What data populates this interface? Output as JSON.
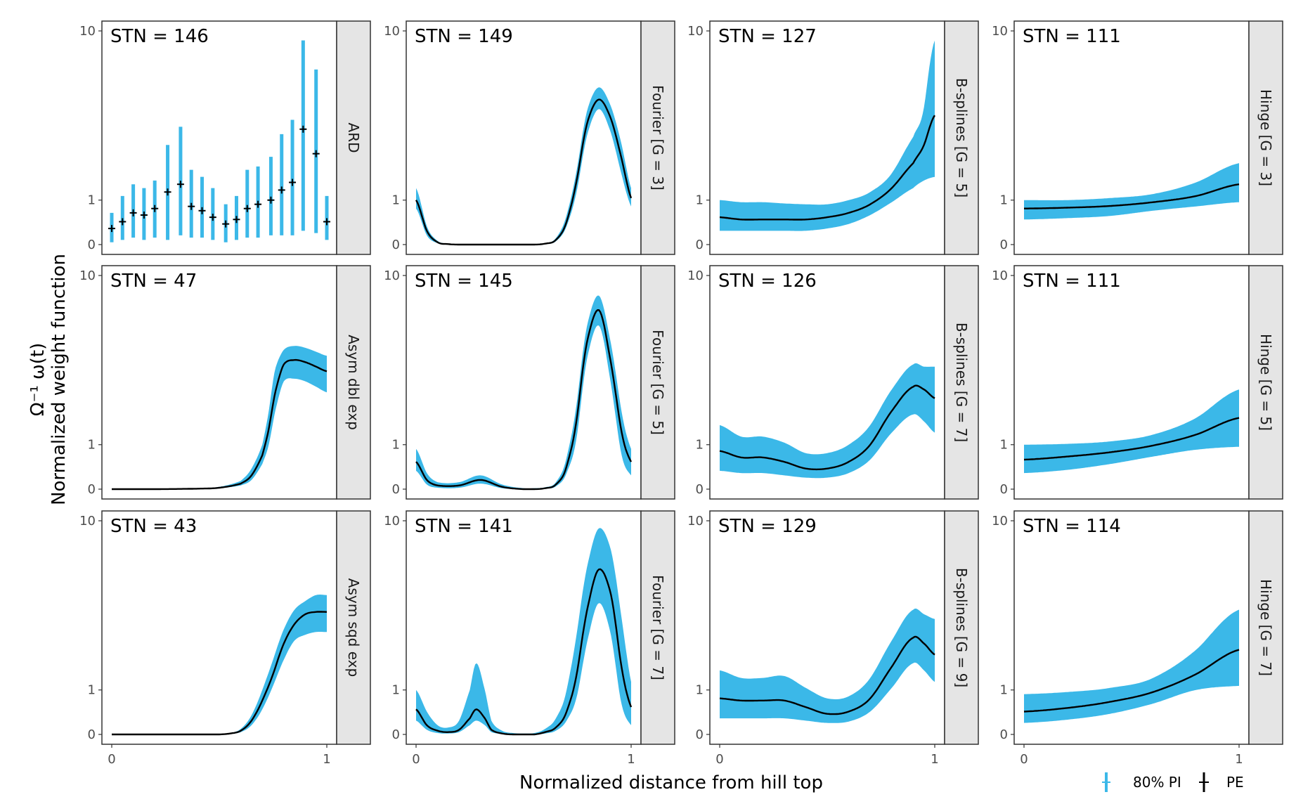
{
  "colors": {
    "band": "#3bb8e8",
    "line": "#000000",
    "strip": "#e5e5e5",
    "frame": "#333333"
  },
  "chart_data": {
    "type": "line",
    "xlabel": "Normalized distance from hill top",
    "ylabel_line1": "Ω⁻¹ ω(t)",
    "ylabel_line2": "Normalized weight function",
    "x_ticks": [
      "0",
      "1"
    ],
    "y_ticks": [
      "0",
      "1",
      "10"
    ],
    "y_scale": "pseudo-log",
    "xlim": [
      0,
      1
    ],
    "ylim": [
      0,
      10
    ],
    "grid": false,
    "legend": {
      "position": "bottom-right",
      "items": [
        "80% PI",
        "PE"
      ]
    },
    "panels": [
      {
        "strip": "ARD",
        "stn": "STN = 146",
        "kind": "points",
        "points": [
          {
            "x": 0.0,
            "pe": 0.35,
            "lo": 0.05,
            "hi": 0.7
          },
          {
            "x": 0.05,
            "pe": 0.5,
            "lo": 0.1,
            "hi": 1.1
          },
          {
            "x": 0.1,
            "pe": 0.7,
            "lo": 0.15,
            "hi": 1.4
          },
          {
            "x": 0.15,
            "pe": 0.65,
            "lo": 0.1,
            "hi": 1.3
          },
          {
            "x": 0.2,
            "pe": 0.8,
            "lo": 0.15,
            "hi": 1.5
          },
          {
            "x": 0.26,
            "pe": 1.2,
            "lo": 0.1,
            "hi": 2.6
          },
          {
            "x": 0.32,
            "pe": 1.4,
            "lo": 0.2,
            "hi": 3.3
          },
          {
            "x": 0.37,
            "pe": 0.85,
            "lo": 0.15,
            "hi": 1.8
          },
          {
            "x": 0.42,
            "pe": 0.75,
            "lo": 0.15,
            "hi": 1.6
          },
          {
            "x": 0.47,
            "pe": 0.6,
            "lo": 0.1,
            "hi": 1.3
          },
          {
            "x": 0.53,
            "pe": 0.45,
            "lo": 0.05,
            "hi": 0.9
          },
          {
            "x": 0.58,
            "pe": 0.55,
            "lo": 0.1,
            "hi": 1.1
          },
          {
            "x": 0.63,
            "pe": 0.8,
            "lo": 0.15,
            "hi": 1.8
          },
          {
            "x": 0.68,
            "pe": 0.9,
            "lo": 0.15,
            "hi": 1.9
          },
          {
            "x": 0.74,
            "pe": 1.0,
            "lo": 0.2,
            "hi": 2.2
          },
          {
            "x": 0.79,
            "pe": 1.25,
            "lo": 0.2,
            "hi": 3.0
          },
          {
            "x": 0.84,
            "pe": 1.45,
            "lo": 0.2,
            "hi": 3.6
          },
          {
            "x": 0.89,
            "pe": 3.2,
            "lo": 0.3,
            "hi": 9.0
          },
          {
            "x": 0.95,
            "pe": 2.3,
            "lo": 0.25,
            "hi": 6.5
          },
          {
            "x": 1.0,
            "pe": 0.5,
            "lo": 0.1,
            "hi": 1.1
          }
        ]
      },
      {
        "strip": "Fourier [G = 3]",
        "stn": "STN = 149",
        "kind": "curve",
        "x": [
          0,
          0.05,
          0.1,
          0.15,
          0.2,
          0.25,
          0.3,
          0.35,
          0.4,
          0.45,
          0.5,
          0.55,
          0.6,
          0.65,
          0.7,
          0.75,
          0.8,
          0.85,
          0.9,
          0.95,
          1.0
        ],
        "pe": [
          1.0,
          0.3,
          0.05,
          0.01,
          0,
          0,
          0,
          0,
          0,
          0,
          0,
          0,
          0.02,
          0.1,
          0.5,
          1.6,
          3.6,
          4.6,
          3.8,
          2.3,
          1.05
        ],
        "lo": [
          0.8,
          0.2,
          0.03,
          0.005,
          0,
          0,
          0,
          0,
          0,
          0,
          0,
          0,
          0.01,
          0.07,
          0.4,
          1.3,
          3.1,
          4.1,
          3.2,
          1.8,
          0.85
        ],
        "hi": [
          1.3,
          0.4,
          0.08,
          0.02,
          0,
          0,
          0,
          0,
          0,
          0,
          0,
          0,
          0.03,
          0.14,
          0.65,
          1.9,
          4.2,
          5.3,
          4.4,
          2.8,
          1.3
        ]
      },
      {
        "strip": "B-splines [G = 5]",
        "stn": "STN = 127",
        "kind": "curve",
        "x": [
          0,
          0.1,
          0.2,
          0.3,
          0.4,
          0.5,
          0.6,
          0.7,
          0.8,
          0.9,
          0.95,
          1.0
        ],
        "pe": [
          0.6,
          0.55,
          0.55,
          0.55,
          0.55,
          0.6,
          0.7,
          0.9,
          1.3,
          2.0,
          2.6,
          3.8
        ],
        "lo": [
          0.3,
          0.3,
          0.3,
          0.3,
          0.3,
          0.35,
          0.45,
          0.65,
          0.95,
          1.3,
          1.5,
          1.6
        ],
        "hi": [
          1.0,
          0.95,
          0.95,
          0.92,
          0.9,
          0.9,
          1.0,
          1.2,
          1.7,
          2.9,
          4.2,
          9.0
        ]
      },
      {
        "strip": "Hinge [G = 3]",
        "stn": "STN = 111",
        "kind": "curve",
        "x": [
          0,
          0.2,
          0.4,
          0.6,
          0.8,
          1.0
        ],
        "pe": [
          0.8,
          0.82,
          0.86,
          0.95,
          1.1,
          1.4
        ],
        "lo": [
          0.55,
          0.58,
          0.63,
          0.75,
          0.85,
          0.95
        ],
        "hi": [
          1.0,
          1.0,
          1.05,
          1.15,
          1.45,
          2.0
        ]
      },
      {
        "strip": "Asym dbl exp",
        "stn": "STN = 47",
        "kind": "curve",
        "x": [
          0,
          0.2,
          0.4,
          0.5,
          0.6,
          0.65,
          0.7,
          0.73,
          0.76,
          0.8,
          0.85,
          0.9,
          0.95,
          1.0
        ],
        "pe": [
          0,
          0,
          0.01,
          0.03,
          0.12,
          0.3,
          0.75,
          1.4,
          2.5,
          3.6,
          3.8,
          3.7,
          3.5,
          3.3
        ],
        "lo": [
          0,
          0,
          0.005,
          0.02,
          0.08,
          0.2,
          0.55,
          1.0,
          1.9,
          2.9,
          3.0,
          2.9,
          2.7,
          2.5
        ],
        "hi": [
          0,
          0,
          0.02,
          0.05,
          0.18,
          0.45,
          1.0,
          1.9,
          3.4,
          4.3,
          4.5,
          4.4,
          4.2,
          4.0
        ]
      },
      {
        "strip": "Fourier [G = 5]",
        "stn": "STN = 145",
        "kind": "curve",
        "x": [
          0,
          0.05,
          0.1,
          0.2,
          0.3,
          0.4,
          0.5,
          0.55,
          0.6,
          0.65,
          0.7,
          0.75,
          0.8,
          0.85,
          0.9,
          0.95,
          1.0
        ],
        "pe": [
          0.6,
          0.2,
          0.08,
          0.08,
          0.2,
          0.05,
          0,
          0,
          0.02,
          0.1,
          0.5,
          1.8,
          5.0,
          6.8,
          4.0,
          1.5,
          0.6
        ],
        "lo": [
          0.4,
          0.1,
          0.03,
          0.03,
          0.12,
          0.02,
          0,
          0,
          0.01,
          0.06,
          0.35,
          1.3,
          4.1,
          5.7,
          3.1,
          0.9,
          0.3
        ],
        "hi": [
          0.9,
          0.35,
          0.15,
          0.15,
          0.3,
          0.1,
          0.02,
          0.02,
          0.04,
          0.15,
          0.7,
          2.3,
          6.0,
          8.0,
          5.0,
          2.1,
          0.9
        ]
      },
      {
        "strip": "B-splines [G = 7]",
        "stn": "STN = 126",
        "kind": "curve",
        "x": [
          0,
          0.1,
          0.2,
          0.3,
          0.4,
          0.5,
          0.6,
          0.7,
          0.8,
          0.9,
          0.95,
          1.0
        ],
        "pe": [
          0.85,
          0.7,
          0.7,
          0.6,
          0.45,
          0.45,
          0.6,
          1.0,
          1.9,
          2.7,
          2.6,
          2.3
        ],
        "lo": [
          0.4,
          0.35,
          0.35,
          0.3,
          0.25,
          0.25,
          0.35,
          0.65,
          1.3,
          1.8,
          1.6,
          1.3
        ],
        "hi": [
          1.5,
          1.2,
          1.2,
          1.05,
          0.8,
          0.8,
          1.0,
          1.5,
          2.6,
          3.6,
          3.5,
          3.5
        ]
      },
      {
        "strip": "Hinge [G = 5]",
        "stn": "STN = 111",
        "kind": "curve",
        "x": [
          0,
          0.2,
          0.4,
          0.6,
          0.8,
          1.0
        ],
        "pe": [
          0.65,
          0.72,
          0.82,
          0.98,
          1.25,
          1.7
        ],
        "lo": [
          0.35,
          0.42,
          0.55,
          0.72,
          0.88,
          0.95
        ],
        "hi": [
          1.0,
          1.02,
          1.08,
          1.25,
          1.7,
          2.6
        ]
      },
      {
        "strip": "Asym sqd exp",
        "stn": "STN = 43",
        "kind": "curve",
        "x": [
          0,
          0.3,
          0.5,
          0.55,
          0.6,
          0.65,
          0.7,
          0.75,
          0.8,
          0.85,
          0.9,
          0.95,
          1.0
        ],
        "pe": [
          0,
          0,
          0,
          0.02,
          0.08,
          0.3,
          0.75,
          1.4,
          2.3,
          3.0,
          3.4,
          3.5,
          3.5
        ],
        "lo": [
          0,
          0,
          0,
          0.01,
          0.05,
          0.2,
          0.55,
          1.1,
          1.8,
          2.4,
          2.6,
          2.7,
          2.7
        ],
        "hi": [
          0,
          0,
          0,
          0.03,
          0.12,
          0.42,
          1.0,
          1.8,
          2.8,
          3.6,
          4.0,
          4.3,
          4.3
        ]
      },
      {
        "strip": "Fourier [G = 7]",
        "stn": "STN = 141",
        "kind": "curve",
        "x": [
          0,
          0.05,
          0.1,
          0.15,
          0.2,
          0.25,
          0.28,
          0.32,
          0.35,
          0.4,
          0.45,
          0.5,
          0.55,
          0.6,
          0.65,
          0.7,
          0.75,
          0.8,
          0.85,
          0.9,
          0.95,
          1.0
        ],
        "pe": [
          0.55,
          0.2,
          0.08,
          0.05,
          0.1,
          0.35,
          0.55,
          0.35,
          0.1,
          0.02,
          0,
          0,
          0,
          0.05,
          0.15,
          0.5,
          1.5,
          3.8,
          5.8,
          4.6,
          1.8,
          0.6
        ],
        "lo": [
          0.3,
          0.1,
          0.03,
          0.02,
          0.05,
          0.2,
          0.3,
          0.2,
          0.05,
          0.01,
          0,
          0,
          0,
          0.02,
          0.08,
          0.3,
          0.9,
          2.5,
          3.9,
          2.8,
          0.8,
          0.2
        ],
        "hi": [
          1.0,
          0.5,
          0.2,
          0.15,
          0.3,
          1.0,
          1.7,
          1.0,
          0.3,
          0.08,
          0.03,
          0.02,
          0.03,
          0.12,
          0.35,
          1.0,
          2.8,
          6.3,
          9.2,
          7.6,
          3.6,
          1.2
        ]
      },
      {
        "strip": "B-splines [G = 9]",
        "stn": "STN = 129",
        "kind": "curve",
        "x": [
          0,
          0.1,
          0.2,
          0.3,
          0.4,
          0.5,
          0.6,
          0.7,
          0.8,
          0.9,
          0.95,
          1.0
        ],
        "pe": [
          0.8,
          0.75,
          0.75,
          0.75,
          0.6,
          0.45,
          0.5,
          0.8,
          1.6,
          2.5,
          2.3,
          1.95
        ],
        "lo": [
          0.35,
          0.35,
          0.35,
          0.35,
          0.3,
          0.25,
          0.28,
          0.5,
          1.05,
          1.7,
          1.5,
          1.2
        ],
        "hi": [
          1.5,
          1.3,
          1.3,
          1.35,
          1.05,
          0.8,
          0.85,
          1.3,
          2.4,
          3.6,
          3.4,
          3.2
        ]
      },
      {
        "strip": "Hinge [G = 7]",
        "stn": "STN = 114",
        "kind": "curve",
        "x": [
          0,
          0.2,
          0.4,
          0.6,
          0.8,
          1.0
        ],
        "pe": [
          0.5,
          0.58,
          0.72,
          0.95,
          1.4,
          2.1
        ],
        "lo": [
          0.25,
          0.32,
          0.45,
          0.68,
          1.0,
          1.1
        ],
        "hi": [
          0.9,
          0.95,
          1.05,
          1.3,
          2.1,
          3.6
        ]
      }
    ]
  }
}
